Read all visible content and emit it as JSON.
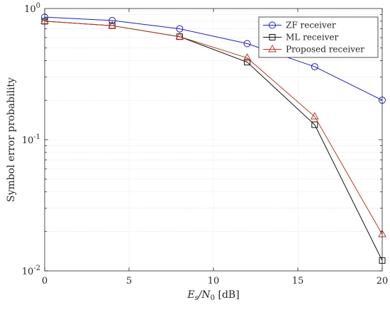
{
  "chart_data": {
    "type": "line",
    "xlabel_parts": [
      "E",
      "s",
      "/N",
      "0",
      " [dB]"
    ],
    "ylabel": "Symbol error probability",
    "x_ticks": [
      0,
      5,
      10,
      15,
      20
    ],
    "y_ticks": [
      {
        "base": "10",
        "exp": "-2",
        "value": 0.01
      },
      {
        "base": "10",
        "exp": "-1",
        "value": 0.1
      },
      {
        "base": "10",
        "exp": "0",
        "value": 1
      }
    ],
    "xlim": [
      0,
      20
    ],
    "ylim": [
      0.01,
      1
    ],
    "y_scale": "log",
    "grid": true,
    "legend_position": "top-right",
    "x": [
      0,
      4,
      8,
      12,
      16,
      20
    ],
    "series": [
      {
        "name": "ZF receiver",
        "color": "#1f1fbf",
        "marker": "circle",
        "values": [
          0.86,
          0.81,
          0.7,
          0.54,
          0.36,
          0.2
        ]
      },
      {
        "name": "ML receiver",
        "color": "#111111",
        "marker": "square",
        "values": [
          0.8,
          0.74,
          0.61,
          0.39,
          0.13,
          0.012
        ]
      },
      {
        "name": "Proposed receiver",
        "color": "#b23a2a",
        "marker": "triangle",
        "values": [
          0.8,
          0.74,
          0.61,
          0.42,
          0.15,
          0.019
        ]
      }
    ]
  }
}
